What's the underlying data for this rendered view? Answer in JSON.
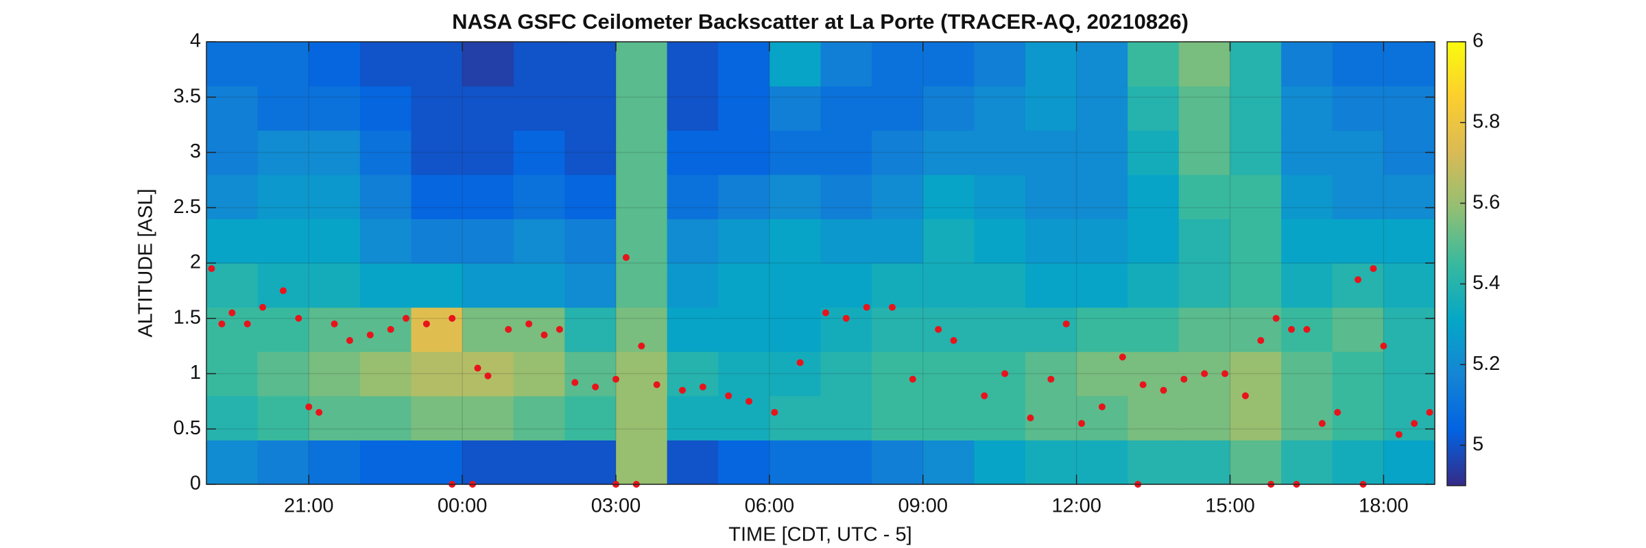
{
  "chart_data": {
    "type": "heatmap",
    "title": "NASA GSFC Ceilometer Backscatter at La Porte (TRACER-AQ, 20210826)",
    "xlabel": "TIME [CDT, UTC - 5]",
    "ylabel": "ALTITUDE [ASL]",
    "xlim": [
      19,
      43
    ],
    "xticks": [
      {
        "value": 21,
        "label": "21:00"
      },
      {
        "value": 24,
        "label": "00:00"
      },
      {
        "value": 27,
        "label": "03:00"
      },
      {
        "value": 30,
        "label": "06:00"
      },
      {
        "value": 33,
        "label": "09:00"
      },
      {
        "value": 36,
        "label": "12:00"
      },
      {
        "value": 39,
        "label": "15:00"
      },
      {
        "value": 42,
        "label": "18:00"
      }
    ],
    "ylim": [
      0,
      4
    ],
    "yticks": [
      0,
      0.5,
      1,
      1.5,
      2,
      2.5,
      3,
      3.5,
      4
    ],
    "grid": true,
    "colormap": "parula",
    "clim": [
      4.9,
      6
    ],
    "cticks": [
      5,
      5.2,
      5.4,
      5.6,
      5.8,
      6
    ],
    "xbins": [
      19,
      20,
      21,
      22,
      23,
      24,
      25,
      26,
      27,
      28,
      29,
      30,
      31,
      32,
      33,
      34,
      35,
      36,
      37,
      38,
      39,
      40,
      41,
      42,
      43
    ],
    "ybins": [
      0,
      0.4,
      0.8,
      1.2,
      1.6,
      2.0,
      2.4,
      2.8,
      3.2,
      3.6,
      4.0
    ],
    "z": [
      [
        5.2,
        5.15,
        5.1,
        5.05,
        5.05,
        5.0,
        5.0,
        5.0,
        5.6,
        5.0,
        5.05,
        5.1,
        5.1,
        5.15,
        5.2,
        5.3,
        5.35,
        5.35,
        5.4,
        5.4,
        5.5,
        5.4,
        5.35,
        5.3
      ],
      [
        5.4,
        5.45,
        5.5,
        5.5,
        5.55,
        5.55,
        5.5,
        5.45,
        5.6,
        5.35,
        5.35,
        5.4,
        5.4,
        5.45,
        5.45,
        5.45,
        5.5,
        5.5,
        5.55,
        5.55,
        5.6,
        5.5,
        5.45,
        5.4
      ],
      [
        5.45,
        5.5,
        5.55,
        5.6,
        5.65,
        5.65,
        5.6,
        5.5,
        5.6,
        5.4,
        5.35,
        5.35,
        5.4,
        5.45,
        5.45,
        5.45,
        5.5,
        5.55,
        5.55,
        5.55,
        5.6,
        5.5,
        5.45,
        5.4
      ],
      [
        5.45,
        5.45,
        5.5,
        5.5,
        5.75,
        5.55,
        5.55,
        5.4,
        5.55,
        5.3,
        5.3,
        5.3,
        5.35,
        5.4,
        5.4,
        5.4,
        5.4,
        5.45,
        5.45,
        5.5,
        5.5,
        5.45,
        5.5,
        5.4
      ],
      [
        5.4,
        5.35,
        5.35,
        5.3,
        5.3,
        5.25,
        5.25,
        5.2,
        5.5,
        5.25,
        5.3,
        5.3,
        5.3,
        5.35,
        5.35,
        5.35,
        5.3,
        5.3,
        5.35,
        5.4,
        5.45,
        5.35,
        5.4,
        5.35
      ],
      [
        5.3,
        5.3,
        5.3,
        5.2,
        5.15,
        5.15,
        5.2,
        5.15,
        5.5,
        5.2,
        5.25,
        5.3,
        5.25,
        5.25,
        5.35,
        5.3,
        5.25,
        5.25,
        5.3,
        5.4,
        5.45,
        5.3,
        5.3,
        5.3
      ],
      [
        5.2,
        5.25,
        5.25,
        5.15,
        5.05,
        5.05,
        5.1,
        5.05,
        5.5,
        5.1,
        5.15,
        5.2,
        5.15,
        5.2,
        5.3,
        5.25,
        5.2,
        5.2,
        5.3,
        5.45,
        5.45,
        5.25,
        5.2,
        5.2
      ],
      [
        5.15,
        5.2,
        5.2,
        5.1,
        5.0,
        5.0,
        5.05,
        5.0,
        5.5,
        5.05,
        5.05,
        5.1,
        5.1,
        5.15,
        5.2,
        5.2,
        5.2,
        5.2,
        5.35,
        5.5,
        5.4,
        5.2,
        5.2,
        5.15
      ],
      [
        5.15,
        5.1,
        5.1,
        5.05,
        5.0,
        5.0,
        5.0,
        5.0,
        5.5,
        5.0,
        5.05,
        5.15,
        5.1,
        5.1,
        5.15,
        5.2,
        5.25,
        5.2,
        5.4,
        5.5,
        5.4,
        5.2,
        5.15,
        5.15
      ],
      [
        5.1,
        5.1,
        5.05,
        5.0,
        5.0,
        4.95,
        5.0,
        5.0,
        5.5,
        5.0,
        5.05,
        5.3,
        5.15,
        5.1,
        5.1,
        5.15,
        5.25,
        5.2,
        5.45,
        5.55,
        5.4,
        5.15,
        5.1,
        5.1
      ]
    ],
    "points": {
      "color": "#e8141b",
      "x": [
        19.1,
        19.3,
        19.5,
        19.8,
        20.1,
        20.5,
        20.8,
        21.0,
        21.2,
        21.5,
        21.8,
        22.2,
        22.6,
        22.9,
        23.3,
        23.8,
        24.3,
        24.5,
        24.9,
        25.3,
        25.6,
        25.9,
        26.2,
        26.6,
        27.0,
        27.2,
        27.5,
        27.8,
        28.3,
        28.7,
        29.2,
        29.6,
        30.1,
        30.6,
        31.1,
        31.5,
        31.9,
        32.4,
        32.8,
        33.3,
        33.6,
        34.2,
        34.6,
        35.1,
        35.5,
        35.8,
        36.1,
        36.5,
        36.9,
        37.3,
        37.7,
        38.1,
        38.5,
        38.9,
        39.3,
        39.6,
        39.9,
        40.2,
        40.5,
        40.8,
        41.1,
        41.5,
        41.8,
        42.0,
        42.3,
        42.6,
        42.9,
        23.8,
        24.2,
        27.0,
        27.4,
        37.2,
        39.8,
        40.3,
        41.6
      ],
      "y": [
        1.95,
        1.45,
        1.55,
        1.45,
        1.6,
        1.75,
        1.5,
        0.7,
        0.65,
        1.45,
        1.3,
        1.35,
        1.4,
        1.5,
        1.45,
        1.5,
        1.05,
        0.98,
        1.4,
        1.45,
        1.35,
        1.4,
        0.92,
        0.88,
        0.95,
        2.05,
        1.25,
        0.9,
        0.85,
        0.88,
        0.8,
        0.75,
        0.65,
        1.1,
        1.55,
        1.5,
        1.6,
        1.6,
        0.95,
        1.4,
        1.3,
        0.8,
        1.0,
        0.6,
        0.95,
        1.45,
        0.55,
        0.7,
        1.15,
        0.9,
        0.85,
        0.95,
        1.0,
        1.0,
        0.8,
        1.3,
        1.5,
        1.4,
        1.4,
        0.55,
        0.65,
        1.85,
        1.95,
        1.25,
        0.45,
        0.55,
        0.65,
        0,
        0,
        0,
        0,
        0,
        0,
        0,
        0
      ]
    }
  }
}
